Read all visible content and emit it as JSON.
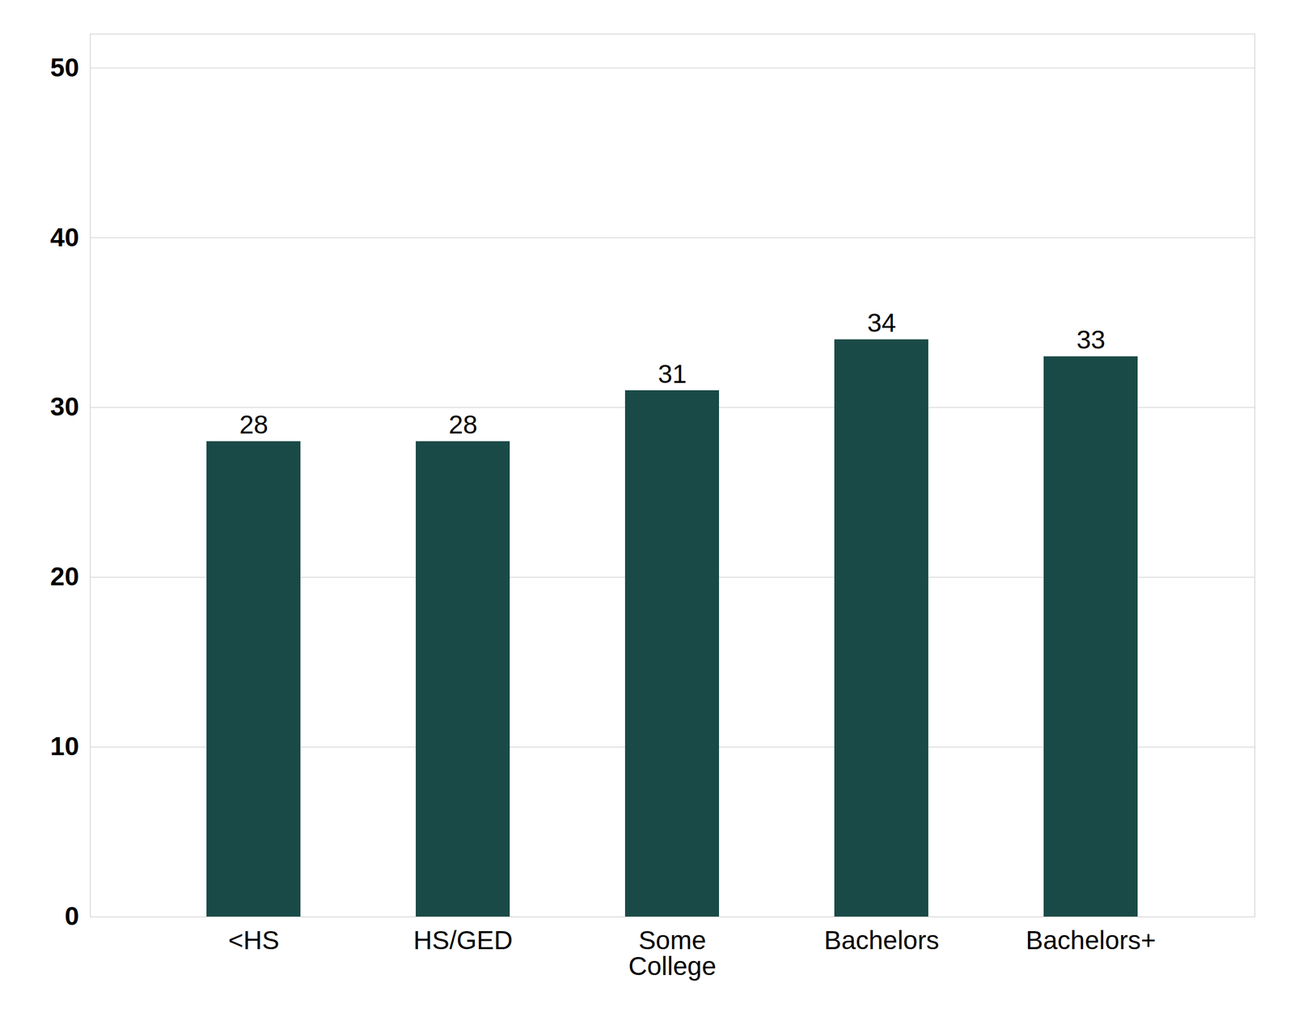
{
  "chart_data": {
    "type": "bar",
    "categories": [
      "<HS",
      "HS/GED",
      "Some\nCollege",
      "Bachelors",
      "Bachelors+"
    ],
    "values": [
      28,
      28,
      31,
      34,
      33
    ],
    "color": "#1a4a47",
    "ylim": [
      0,
      52
    ],
    "yticks": [
      0,
      10,
      20,
      30,
      40,
      50
    ],
    "grid": true,
    "data_labels": true
  }
}
